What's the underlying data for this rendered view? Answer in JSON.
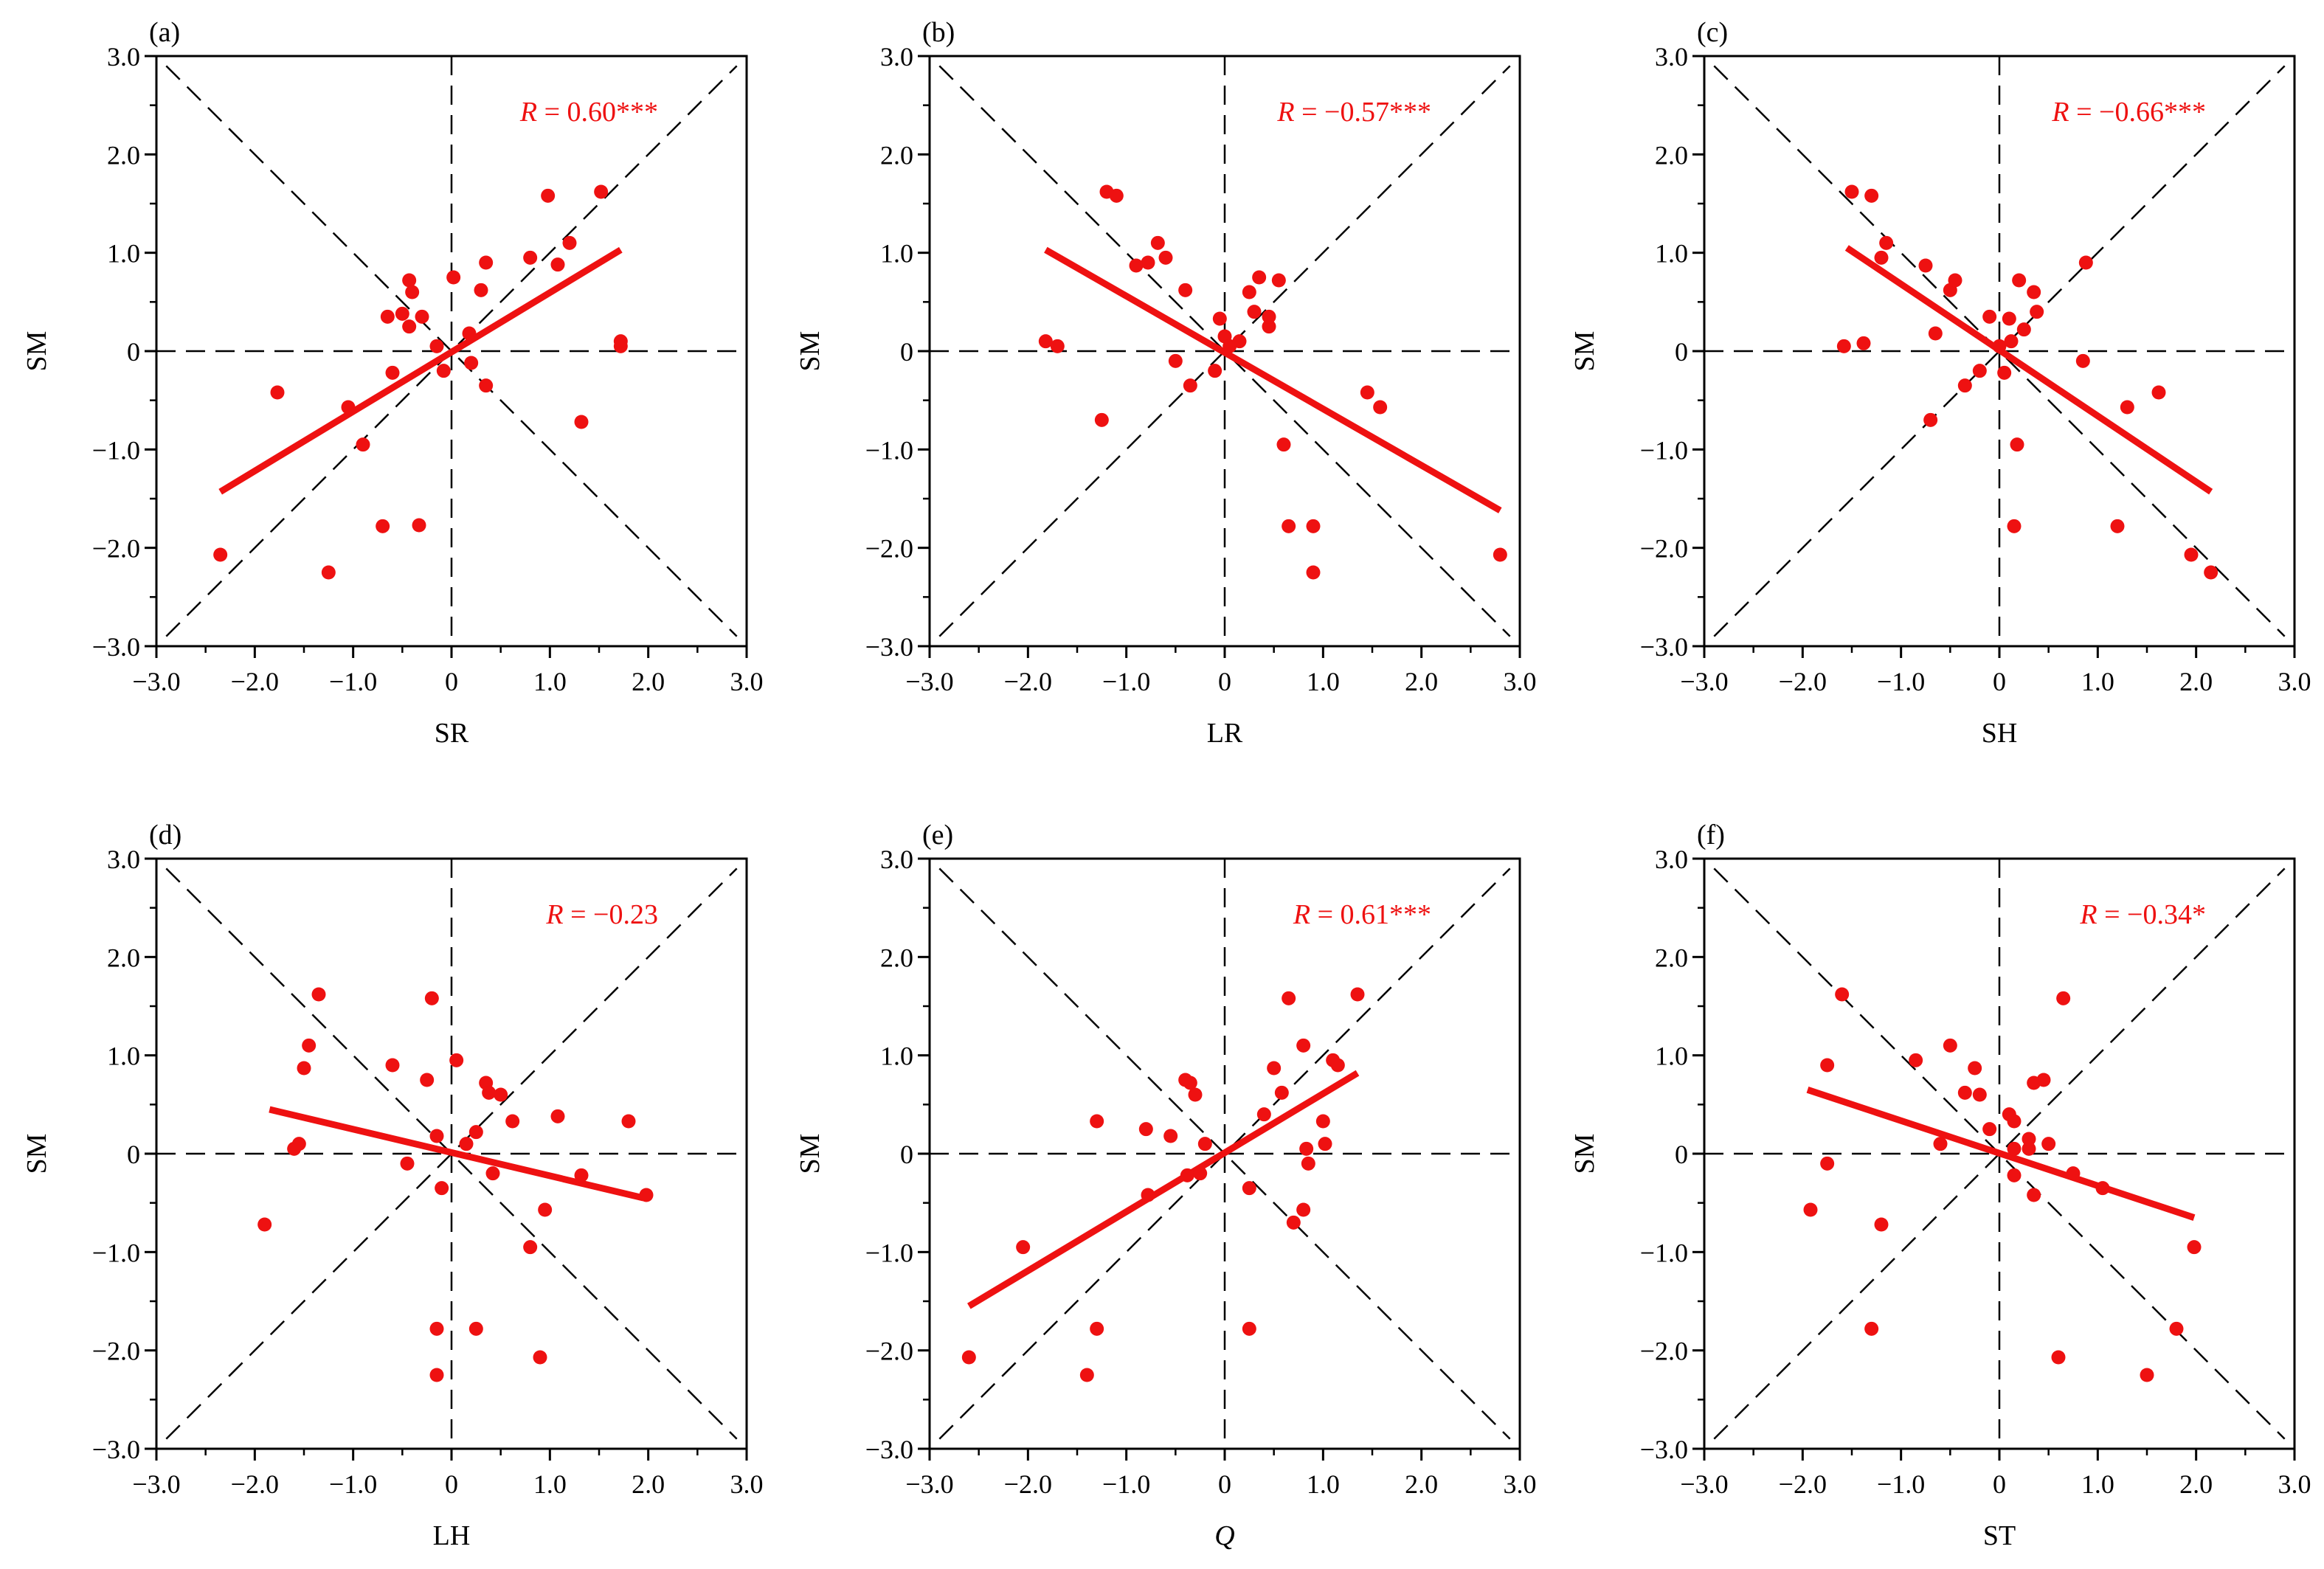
{
  "colors": {
    "series": "#ee1111",
    "axis": "#000000"
  },
  "chart_data": [
    {
      "panel": "(a)",
      "type": "scatter",
      "xlabel": "SR",
      "xlabel_italic": false,
      "ylabel": "SM",
      "xlim": [
        -3,
        3
      ],
      "ylim": [
        -3,
        3
      ],
      "xticks": [
        "−3.0",
        "−2.0",
        "−1.0",
        "0",
        "1.0",
        "2.0",
        "3.0"
      ],
      "yticks": [
        "−3.0",
        "−2.0",
        "−1.0",
        "0",
        "1.0",
        "2.0",
        "3.0"
      ],
      "r_text": "= 0.60***",
      "regression": {
        "x": [
          -2.35,
          1.72
        ],
        "y": [
          -1.43,
          1.03
        ]
      },
      "points": [
        [
          -2.35,
          -2.07
        ],
        [
          -1.77,
          -0.42
        ],
        [
          -1.25,
          -2.25
        ],
        [
          -1.05,
          -0.57
        ],
        [
          -0.9,
          -0.95
        ],
        [
          -0.7,
          -1.78
        ],
        [
          -0.65,
          0.35
        ],
        [
          -0.6,
          -0.22
        ],
        [
          -0.5,
          0.38
        ],
        [
          -0.43,
          0.72
        ],
        [
          -0.4,
          0.6
        ],
        [
          -0.43,
          0.25
        ],
        [
          -0.33,
          -1.77
        ],
        [
          -0.3,
          0.35
        ],
        [
          -0.15,
          0.05
        ],
        [
          -0.08,
          -0.2
        ],
        [
          0.02,
          0.75
        ],
        [
          0.18,
          0.18
        ],
        [
          0.2,
          -0.12
        ],
        [
          0.3,
          0.62
        ],
        [
          0.35,
          0.9
        ],
        [
          0.35,
          -0.35
        ],
        [
          0.8,
          0.95
        ],
        [
          0.98,
          1.58
        ],
        [
          1.08,
          0.88
        ],
        [
          1.2,
          1.1
        ],
        [
          1.32,
          -0.72
        ],
        [
          1.52,
          1.62
        ],
        [
          1.72,
          0.05
        ],
        [
          1.72,
          0.1
        ]
      ]
    },
    {
      "panel": "(b)",
      "type": "scatter",
      "xlabel": "LR",
      "xlabel_italic": false,
      "ylabel": "SM",
      "xlim": [
        -3,
        3
      ],
      "ylim": [
        -3,
        3
      ],
      "xticks": [
        "−3.0",
        "−2.0",
        "−1.0",
        "0",
        "1.0",
        "2.0",
        "3.0"
      ],
      "yticks": [
        "−3.0",
        "−2.0",
        "−1.0",
        "0",
        "1.0",
        "2.0",
        "3.0"
      ],
      "r_text": "= −0.57***",
      "regression": {
        "x": [
          -1.82,
          2.8
        ],
        "y": [
          1.03,
          -1.62
        ]
      },
      "points": [
        [
          -1.82,
          0.1
        ],
        [
          -1.7,
          0.05
        ],
        [
          -1.25,
          -0.7
        ],
        [
          -1.2,
          1.62
        ],
        [
          -1.1,
          1.58
        ],
        [
          -0.9,
          0.87
        ],
        [
          -0.78,
          0.9
        ],
        [
          -0.68,
          1.1
        ],
        [
          -0.6,
          0.95
        ],
        [
          -0.5,
          -0.1
        ],
        [
          -0.4,
          0.62
        ],
        [
          -0.35,
          -0.35
        ],
        [
          -0.1,
          -0.2
        ],
        [
          -0.05,
          0.33
        ],
        [
          0.0,
          0.15
        ],
        [
          0.05,
          0.05
        ],
        [
          0.15,
          0.1
        ],
        [
          0.25,
          0.6
        ],
        [
          0.3,
          0.4
        ],
        [
          0.35,
          0.75
        ],
        [
          0.45,
          0.25
        ],
        [
          0.45,
          0.35
        ],
        [
          0.55,
          0.72
        ],
        [
          0.6,
          -0.95
        ],
        [
          0.65,
          -1.78
        ],
        [
          0.9,
          -1.78
        ],
        [
          0.9,
          -2.25
        ],
        [
          1.45,
          -0.42
        ],
        [
          1.58,
          -0.57
        ],
        [
          2.8,
          -2.07
        ]
      ]
    },
    {
      "panel": "(c)",
      "type": "scatter",
      "xlabel": "SH",
      "xlabel_italic": false,
      "ylabel": "SM",
      "xlim": [
        -3,
        3
      ],
      "ylim": [
        -3,
        3
      ],
      "xticks": [
        "−3.0",
        "−2.0",
        "−1.0",
        "0",
        "1.0",
        "2.0",
        "3.0"
      ],
      "yticks": [
        "−3.0",
        "−2.0",
        "−1.0",
        "0",
        "1.0",
        "2.0",
        "3.0"
      ],
      "r_text": "= −0.66***",
      "regression": {
        "x": [
          -1.55,
          2.15
        ],
        "y": [
          1.05,
          -1.43
        ]
      },
      "points": [
        [
          -1.58,
          0.05
        ],
        [
          -1.5,
          1.62
        ],
        [
          -1.38,
          0.08
        ],
        [
          -1.3,
          1.58
        ],
        [
          -1.2,
          0.95
        ],
        [
          -1.15,
          1.1
        ],
        [
          -0.75,
          0.87
        ],
        [
          -0.7,
          -0.7
        ],
        [
          -0.65,
          0.18
        ],
        [
          -0.5,
          0.62
        ],
        [
          -0.45,
          0.72
        ],
        [
          -0.35,
          -0.35
        ],
        [
          -0.2,
          -0.2
        ],
        [
          -0.1,
          0.35
        ],
        [
          0.0,
          0.05
        ],
        [
          0.05,
          -0.22
        ],
        [
          0.1,
          0.33
        ],
        [
          0.12,
          0.1
        ],
        [
          0.15,
          -1.78
        ],
        [
          0.18,
          -0.95
        ],
        [
          0.2,
          0.72
        ],
        [
          0.25,
          0.22
        ],
        [
          0.35,
          0.6
        ],
        [
          0.38,
          0.4
        ],
        [
          0.85,
          -0.1
        ],
        [
          0.88,
          0.9
        ],
        [
          1.2,
          -1.78
        ],
        [
          1.3,
          -0.57
        ],
        [
          1.62,
          -0.42
        ],
        [
          1.95,
          -2.07
        ],
        [
          2.15,
          -2.25
        ]
      ]
    },
    {
      "panel": "(d)",
      "type": "scatter",
      "xlabel": "LH",
      "xlabel_italic": false,
      "ylabel": "SM",
      "xlim": [
        -3,
        3
      ],
      "ylim": [
        -3,
        3
      ],
      "xticks": [
        "−3.0",
        "−2.0",
        "−1.0",
        "0",
        "1.0",
        "2.0",
        "3.0"
      ],
      "yticks": [
        "−3.0",
        "−2.0",
        "−1.0",
        "0",
        "1.0",
        "2.0",
        "3.0"
      ],
      "r_text": "= −0.23",
      "regression": {
        "x": [
          -1.85,
          1.95
        ],
        "y": [
          0.45,
          -0.45
        ]
      },
      "points": [
        [
          -1.9,
          -0.72
        ],
        [
          -1.6,
          0.05
        ],
        [
          -1.55,
          0.1
        ],
        [
          -1.5,
          0.87
        ],
        [
          -1.45,
          1.1
        ],
        [
          -1.35,
          1.62
        ],
        [
          -0.6,
          0.9
        ],
        [
          -0.45,
          -0.1
        ],
        [
          -0.25,
          0.75
        ],
        [
          -0.2,
          1.58
        ],
        [
          -0.15,
          0.18
        ],
        [
          -0.15,
          -1.78
        ],
        [
          -0.15,
          -2.25
        ],
        [
          -0.1,
          -0.35
        ],
        [
          0.05,
          0.95
        ],
        [
          0.15,
          0.1
        ],
        [
          0.25,
          -1.78
        ],
        [
          0.25,
          0.22
        ],
        [
          0.35,
          0.72
        ],
        [
          0.38,
          0.62
        ],
        [
          0.42,
          -0.2
        ],
        [
          0.5,
          0.6
        ],
        [
          0.62,
          0.33
        ],
        [
          0.8,
          -0.95
        ],
        [
          0.9,
          -2.07
        ],
        [
          0.95,
          -0.57
        ],
        [
          1.08,
          0.38
        ],
        [
          1.32,
          -0.22
        ],
        [
          1.8,
          0.33
        ],
        [
          1.98,
          -0.42
        ]
      ]
    },
    {
      "panel": "(e)",
      "type": "scatter",
      "xlabel": "Q",
      "xlabel_italic": true,
      "ylabel": "SM",
      "xlim": [
        -3,
        3
      ],
      "ylim": [
        -3,
        3
      ],
      "xticks": [
        "−3.0",
        "−2.0",
        "−1.0",
        "0",
        "1.0",
        "2.0",
        "3.0"
      ],
      "yticks": [
        "−3.0",
        "−2.0",
        "−1.0",
        "0",
        "1.0",
        "2.0",
        "3.0"
      ],
      "r_text": "= 0.61***",
      "regression": {
        "x": [
          -2.6,
          1.35
        ],
        "y": [
          -1.55,
          0.82
        ]
      },
      "points": [
        [
          -2.6,
          -2.07
        ],
        [
          -2.05,
          -0.95
        ],
        [
          -1.4,
          -2.25
        ],
        [
          -1.3,
          -1.78
        ],
        [
          -1.3,
          0.33
        ],
        [
          -0.8,
          0.25
        ],
        [
          -0.78,
          -0.42
        ],
        [
          -0.55,
          0.18
        ],
        [
          -0.4,
          0.75
        ],
        [
          -0.35,
          0.72
        ],
        [
          -0.3,
          0.6
        ],
        [
          -0.38,
          -0.22
        ],
        [
          -0.25,
          -0.2
        ],
        [
          -0.2,
          0.1
        ],
        [
          0.25,
          -1.78
        ],
        [
          0.25,
          -0.35
        ],
        [
          0.4,
          0.4
        ],
        [
          0.5,
          0.87
        ],
        [
          0.58,
          0.62
        ],
        [
          0.65,
          1.58
        ],
        [
          0.7,
          -0.7
        ],
        [
          0.8,
          1.1
        ],
        [
          0.8,
          -0.57
        ],
        [
          0.83,
          0.05
        ],
        [
          0.85,
          -0.1
        ],
        [
          1.0,
          0.33
        ],
        [
          1.02,
          0.1
        ],
        [
          1.1,
          0.95
        ],
        [
          1.15,
          0.9
        ],
        [
          1.35,
          1.62
        ]
      ]
    },
    {
      "panel": "(f)",
      "type": "scatter",
      "xlabel": "ST",
      "xlabel_italic": false,
      "ylabel": "SM",
      "xlim": [
        -3,
        3
      ],
      "ylim": [
        -3,
        3
      ],
      "xticks": [
        "−3.0",
        "−2.0",
        "−1.0",
        "0",
        "1.0",
        "2.0",
        "3.0"
      ],
      "yticks": [
        "−3.0",
        "−2.0",
        "−1.0",
        "0",
        "1.0",
        "2.0",
        "3.0"
      ],
      "r_text": "= −0.34*",
      "regression": {
        "x": [
          -1.95,
          1.98
        ],
        "y": [
          0.65,
          -0.65
        ]
      },
      "points": [
        [
          -1.92,
          -0.57
        ],
        [
          -1.75,
          0.9
        ],
        [
          -1.75,
          -0.1
        ],
        [
          -1.6,
          1.62
        ],
        [
          -1.3,
          -1.78
        ],
        [
          -1.2,
          -0.72
        ],
        [
          -0.85,
          0.95
        ],
        [
          -0.6,
          0.1
        ],
        [
          -0.5,
          1.1
        ],
        [
          -0.35,
          0.62
        ],
        [
          -0.25,
          0.87
        ],
        [
          -0.2,
          0.6
        ],
        [
          -0.1,
          0.25
        ],
        [
          0.1,
          0.4
        ],
        [
          0.15,
          0.33
        ],
        [
          0.15,
          -0.22
        ],
        [
          0.15,
          0.05
        ],
        [
          0.3,
          0.05
        ],
        [
          0.3,
          0.15
        ],
        [
          0.35,
          0.72
        ],
        [
          0.35,
          -0.42
        ],
        [
          0.45,
          0.75
        ],
        [
          0.5,
          0.1
        ],
        [
          0.6,
          -2.07
        ],
        [
          0.65,
          1.58
        ],
        [
          0.75,
          -0.2
        ],
        [
          1.05,
          -0.35
        ],
        [
          1.5,
          -2.25
        ],
        [
          1.8,
          -1.78
        ],
        [
          1.98,
          -0.95
        ]
      ]
    }
  ]
}
